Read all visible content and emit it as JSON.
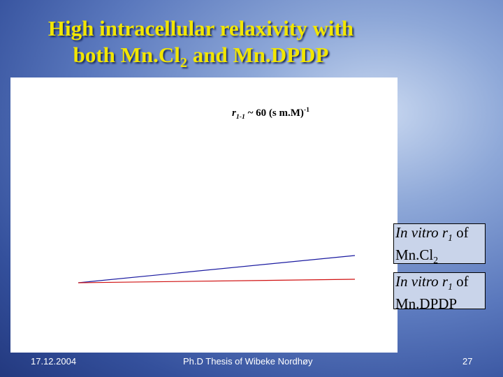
{
  "title": {
    "line1": "High intracellular relaxivity with",
    "line2": [
      "both Mn.Cl",
      "2",
      " and Mn.DPDP"
    ]
  },
  "annotation": [
    "r",
    "1-1",
    " ~ 60 (s m.M)",
    "-1"
  ],
  "labels": [
    [
      "In vitro r",
      "1",
      " of",
      "Mn.Cl",
      "2"
    ],
    [
      "In vitro r",
      "1",
      " of",
      "Mn.DPDP"
    ]
  ],
  "footer": {
    "date": "17.12.2004",
    "center": "Ph.D Thesis of Wibeke Nordhøy",
    "page": "27"
  }
}
